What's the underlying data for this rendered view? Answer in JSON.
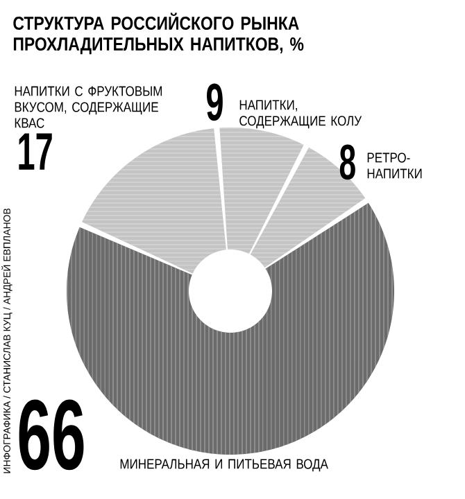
{
  "chart_data": {
    "type": "donut",
    "title": "СТРУКТУРА РОССИЙСКОГО РЫНКА ПРОХЛАДИТЕЛЬНЫХ НАПИТКОВ, %",
    "categories": [
      "НАПИТКИ С ФРУКТОВЫМ ВКУСОМ, СОДЕРЖАЩИЕ КВАС",
      "НАПИТКИ, СОДЕРЖАЩИЕ КОЛУ",
      "РЕТРО-НАПИТКИ",
      "МИНЕРАЛЬНАЯ И ПИТЬЕВАЯ ВОДА"
    ],
    "values": [
      17,
      9,
      8,
      66
    ],
    "colors": [
      "#c4c4c4",
      "#c4c4c4",
      "#c4c4c4",
      "#6b6b6b"
    ],
    "data_labels": true,
    "annotations": [
      "ИНФОГРАФИКА / СТАНИСЛАВ КУЦ / АНДРЕЙ ЕВПЛАНОВ"
    ]
  }
}
